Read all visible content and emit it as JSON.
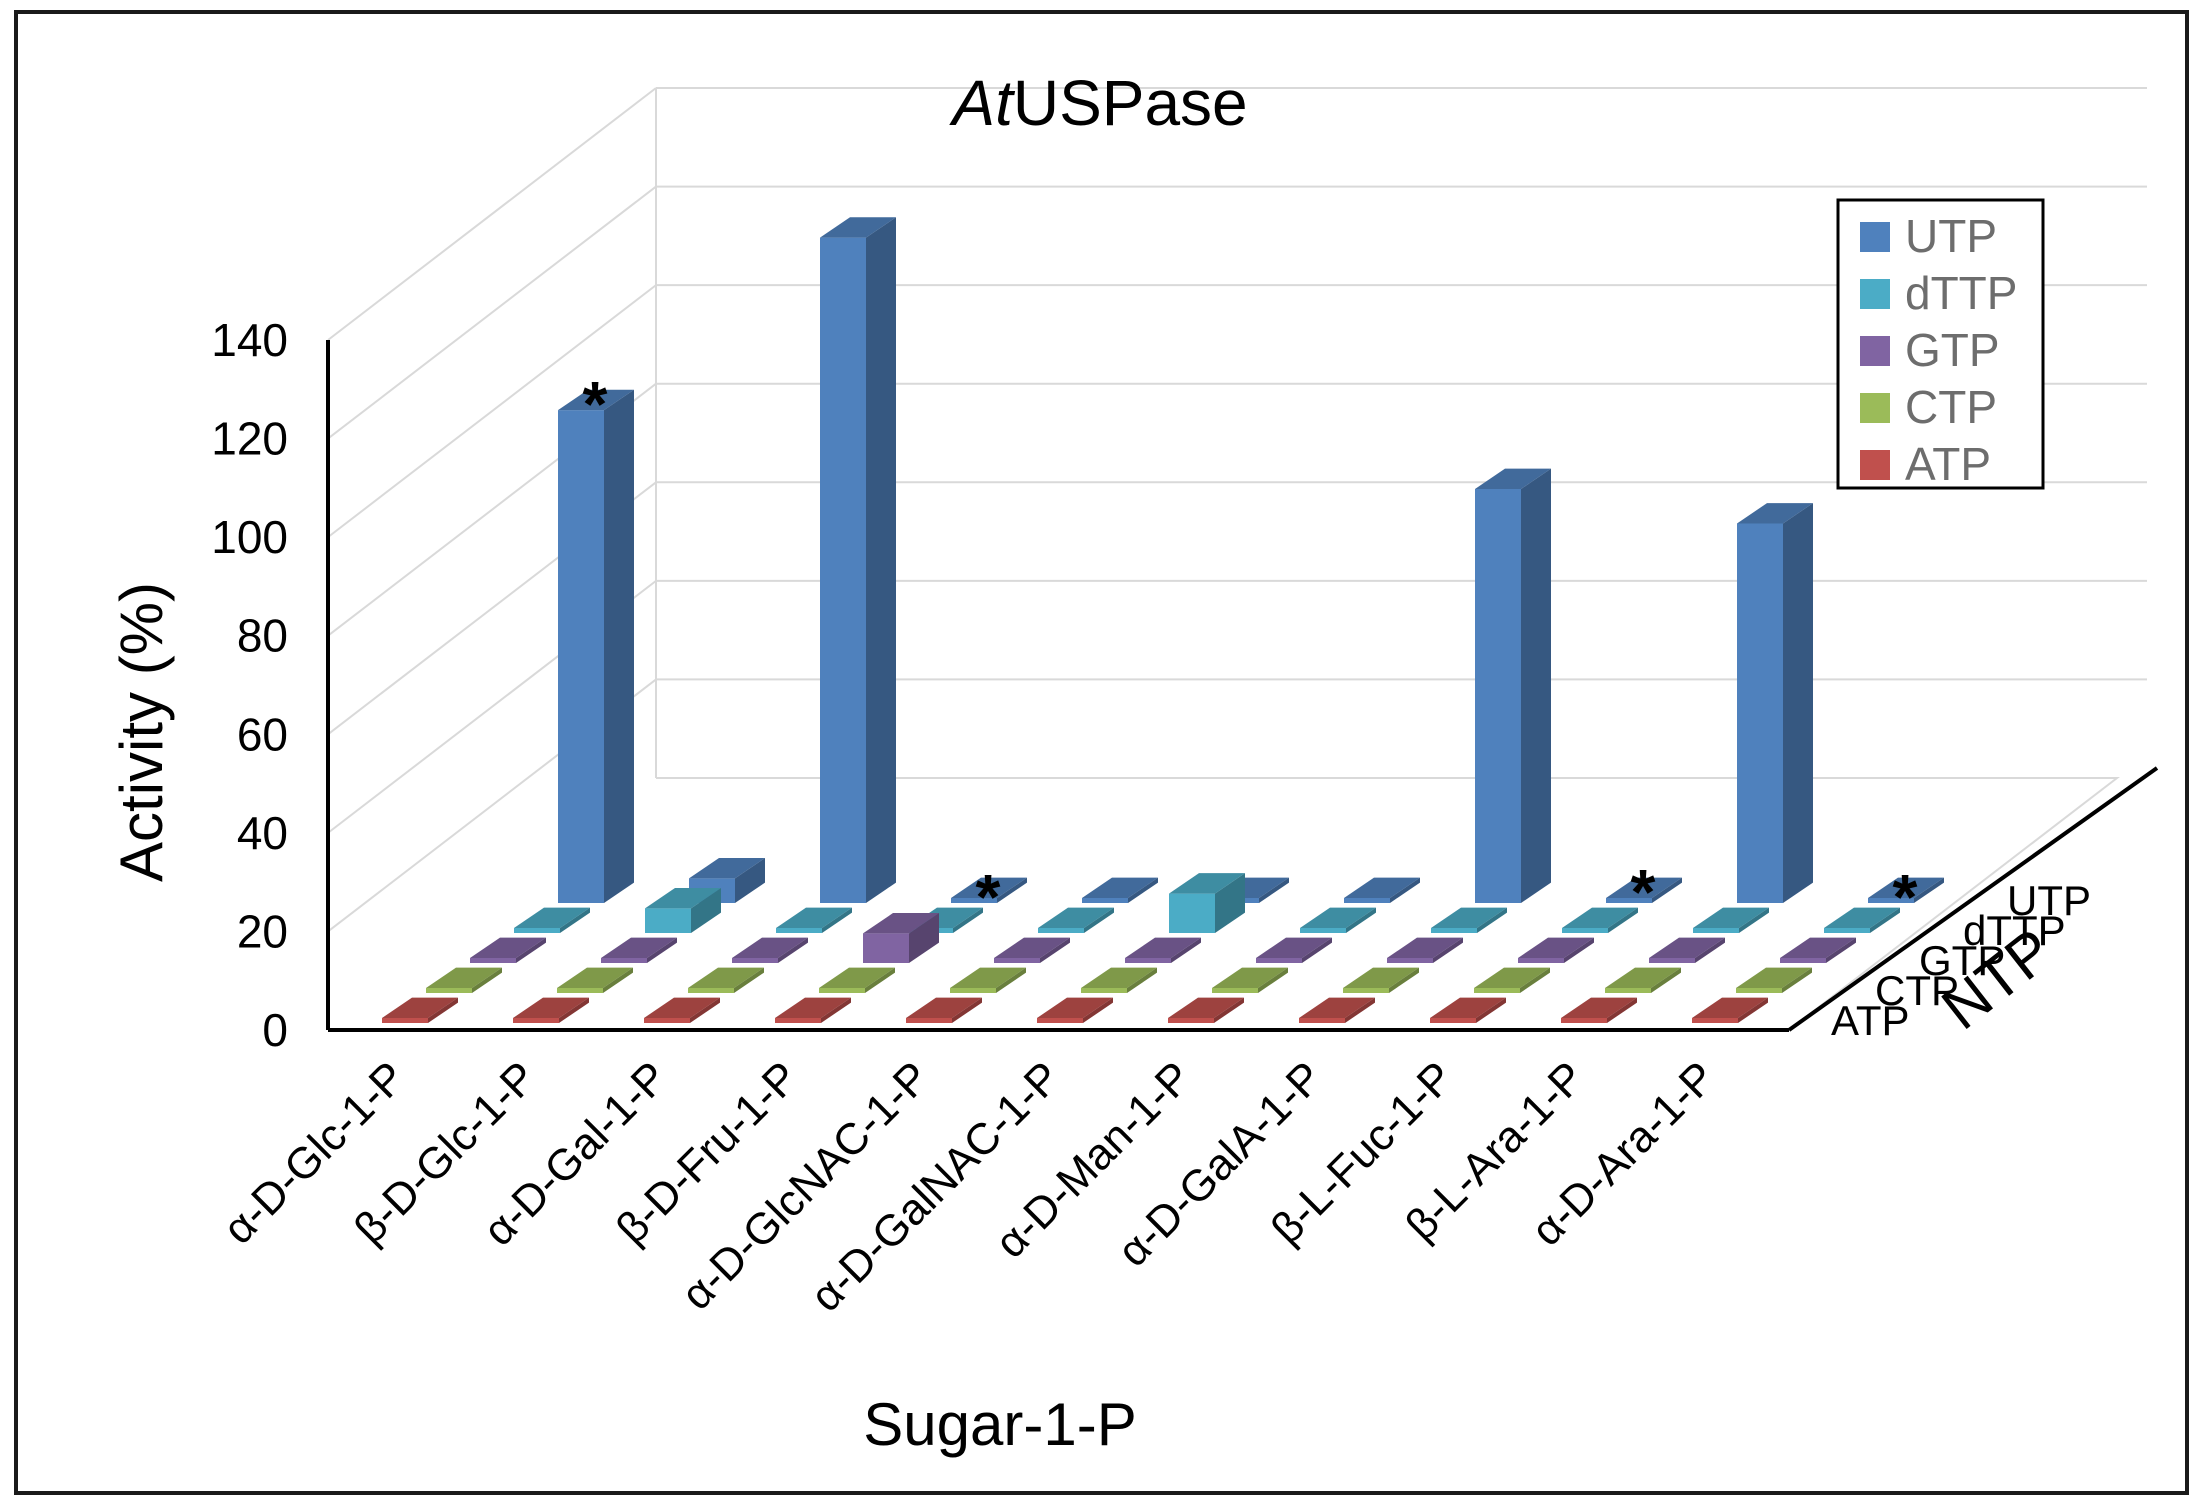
{
  "chart_data": {
    "type": "bar",
    "title_prefix": "At",
    "title_suffix": "USPase",
    "xlabel": "Sugar-1-P",
    "ylabel": "Activity (%)",
    "zlabel": "NTP",
    "ylim": [
      0,
      140
    ],
    "yticks": [
      "0",
      "20",
      "40",
      "60",
      "80",
      "100",
      "120",
      "140"
    ],
    "categories": [
      "α-D-Glc-1-P",
      "β-D-Glc-1-P",
      "α-D-Gal-1-P",
      "β-D-Fru-1-P",
      "α-D-GlcNAC-1-P",
      "α-D-GalNAC-1-P",
      "α-D-Man-1-P",
      "α-D-GalA-1-P",
      "β-L-Fuc-1-P",
      "β-L-Ara-1-P",
      "α-D-Ara-1-P"
    ],
    "series": [
      {
        "name": "UTP",
        "values": [
          100,
          5,
          135,
          0,
          0,
          0,
          0,
          84,
          1,
          77,
          0
        ]
      },
      {
        "name": "dTTP",
        "values": [
          0,
          5,
          0,
          0,
          1,
          8,
          0,
          1,
          0,
          1,
          0
        ]
      },
      {
        "name": "GTP",
        "values": [
          0,
          1,
          0,
          6,
          0,
          1,
          0,
          0,
          1,
          0,
          0
        ]
      },
      {
        "name": "CTP",
        "values": [
          0,
          1,
          0,
          0,
          0,
          0,
          0,
          0.5,
          0.5,
          0.5,
          0
        ]
      },
      {
        "name": "ATP",
        "values": [
          0,
          0.5,
          0.5,
          0,
          0,
          0,
          0,
          0,
          1,
          0,
          0
        ]
      }
    ],
    "annotations": [
      {
        "text": "*",
        "series": "UTP",
        "category": "α-D-Glc-1-P"
      },
      {
        "text": "*",
        "series": "UTP",
        "category": "β-D-Fru-1-P"
      },
      {
        "text": "*",
        "series": "UTP",
        "category": "β-L-Fuc-1-P"
      },
      {
        "text": "*",
        "series": "UTP",
        "category": "α-D-Ara-1-P"
      }
    ],
    "legend_position": "top-right",
    "grid": true,
    "colors": {
      "UTP": "#4f81bd",
      "dTTP": "#4bacc6",
      "GTP": "#8064a2",
      "CTP": "#9bbb59",
      "ATP": "#c0504d"
    }
  }
}
